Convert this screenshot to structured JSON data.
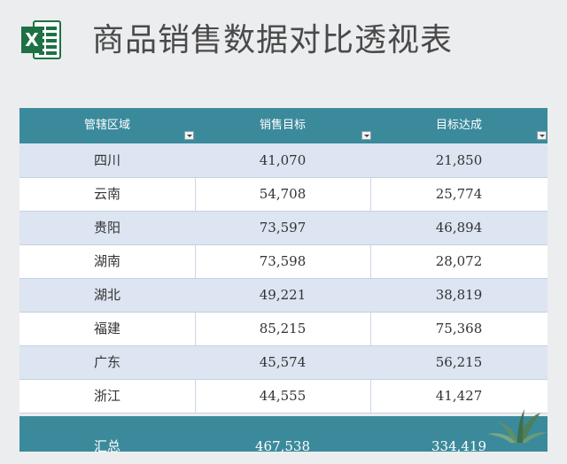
{
  "header": {
    "title": "商品销售数据对比透视表",
    "logo_letter": "X"
  },
  "table": {
    "columns": [
      "管辖区域",
      "销售目标",
      "目标达成"
    ],
    "rows": [
      {
        "region": "四川",
        "target": "41,070",
        "achieved": "21,850"
      },
      {
        "region": "云南",
        "target": "54,708",
        "achieved": "25,774"
      },
      {
        "region": "贵阳",
        "target": "73,597",
        "achieved": "46,894"
      },
      {
        "region": "湖南",
        "target": "73,598",
        "achieved": "28,072"
      },
      {
        "region": "湖北",
        "target": "49,221",
        "achieved": "38,819"
      },
      {
        "region": "福建",
        "target": "85,215",
        "achieved": "75,368"
      },
      {
        "region": "广东",
        "target": "45,574",
        "achieved": "56,215"
      },
      {
        "region": "浙江",
        "target": "44,555",
        "achieved": "41,427"
      }
    ],
    "total": {
      "label": "汇总",
      "target": "467,538",
      "achieved": "334,419"
    }
  },
  "colors": {
    "header_bg": "#3b8a9c",
    "row_alt": "#dce5f1",
    "excel_green": "#1e7145"
  }
}
